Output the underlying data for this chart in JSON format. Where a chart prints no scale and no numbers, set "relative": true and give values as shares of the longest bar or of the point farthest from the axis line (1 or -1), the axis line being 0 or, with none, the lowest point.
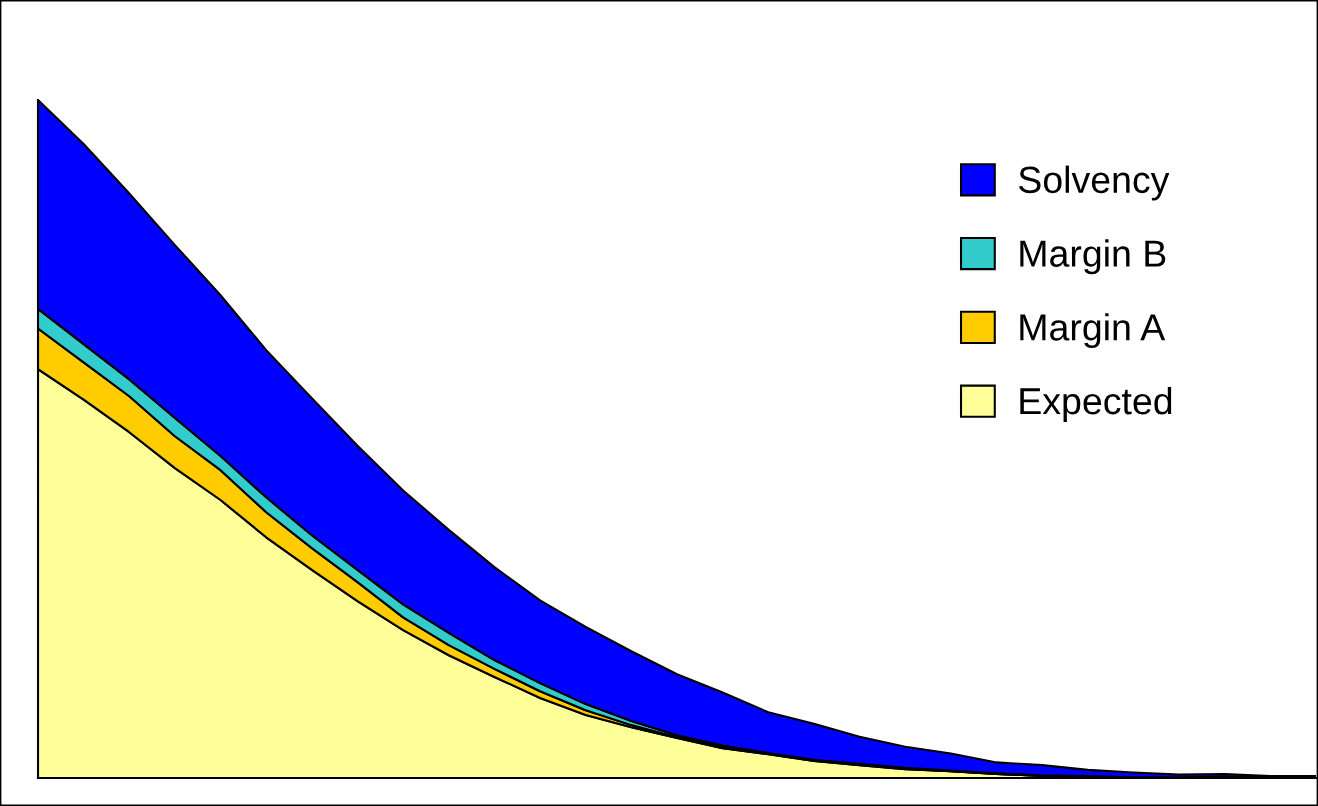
{
  "chart_data": {
    "type": "area",
    "stacked": true,
    "relative": true,
    "legend": "top right",
    "categories": [
      null,
      null,
      null,
      null,
      null,
      null,
      null,
      null,
      null,
      null,
      null,
      null,
      null,
      null,
      null,
      null,
      null,
      null,
      null,
      null,
      null,
      null,
      null,
      null,
      null,
      null,
      null,
      null,
      null
    ],
    "series": [
      {
        "name": "Expected",
        "color": "#ffff99",
        "values": [
          0.603,
          0.558,
          0.51,
          0.457,
          0.41,
          0.355,
          0.307,
          0.261,
          0.218,
          0.181,
          0.149,
          0.118,
          0.093,
          0.075,
          0.059,
          0.044,
          0.035,
          0.025,
          0.019,
          0.013,
          0.01,
          0.006,
          0.003,
          0.001,
          0.001,
          0.001,
          0.001,
          0,
          0
        ]
      },
      {
        "name": "Margin A",
        "color": "#ffcc00",
        "values": [
          0.06,
          0.055,
          0.053,
          0.047,
          0.044,
          0.037,
          0.032,
          0.028,
          0.019,
          0.015,
          0.012,
          0.01,
          0.007,
          0.003,
          0.001,
          0.001,
          0.001,
          0.001,
          0.001,
          0.001,
          0,
          0,
          0,
          0.001,
          0,
          0,
          0,
          0,
          0
        ]
      },
      {
        "name": "Margin B",
        "color": "#33cccc",
        "values": [
          0.029,
          0.027,
          0.025,
          0.027,
          0.021,
          0.022,
          0.019,
          0.018,
          0.019,
          0.018,
          0.013,
          0.012,
          0.009,
          0.006,
          0.003,
          0.003,
          0.001,
          0.001,
          0.001,
          0.001,
          0.001,
          0.001,
          0.001,
          0.001,
          0,
          0,
          0.001,
          0.001,
          0
        ]
      },
      {
        "name": "Solvency",
        "color": "#0000ff",
        "values": [
          0.308,
          0.295,
          0.274,
          0.255,
          0.237,
          0.217,
          0.202,
          0.183,
          0.168,
          0.152,
          0.137,
          0.122,
          0.114,
          0.103,
          0.09,
          0.078,
          0.06,
          0.053,
          0.04,
          0.031,
          0.025,
          0.016,
          0.015,
          0.009,
          0.007,
          0.004,
          0.004,
          0.002,
          0.003
        ]
      }
    ]
  }
}
